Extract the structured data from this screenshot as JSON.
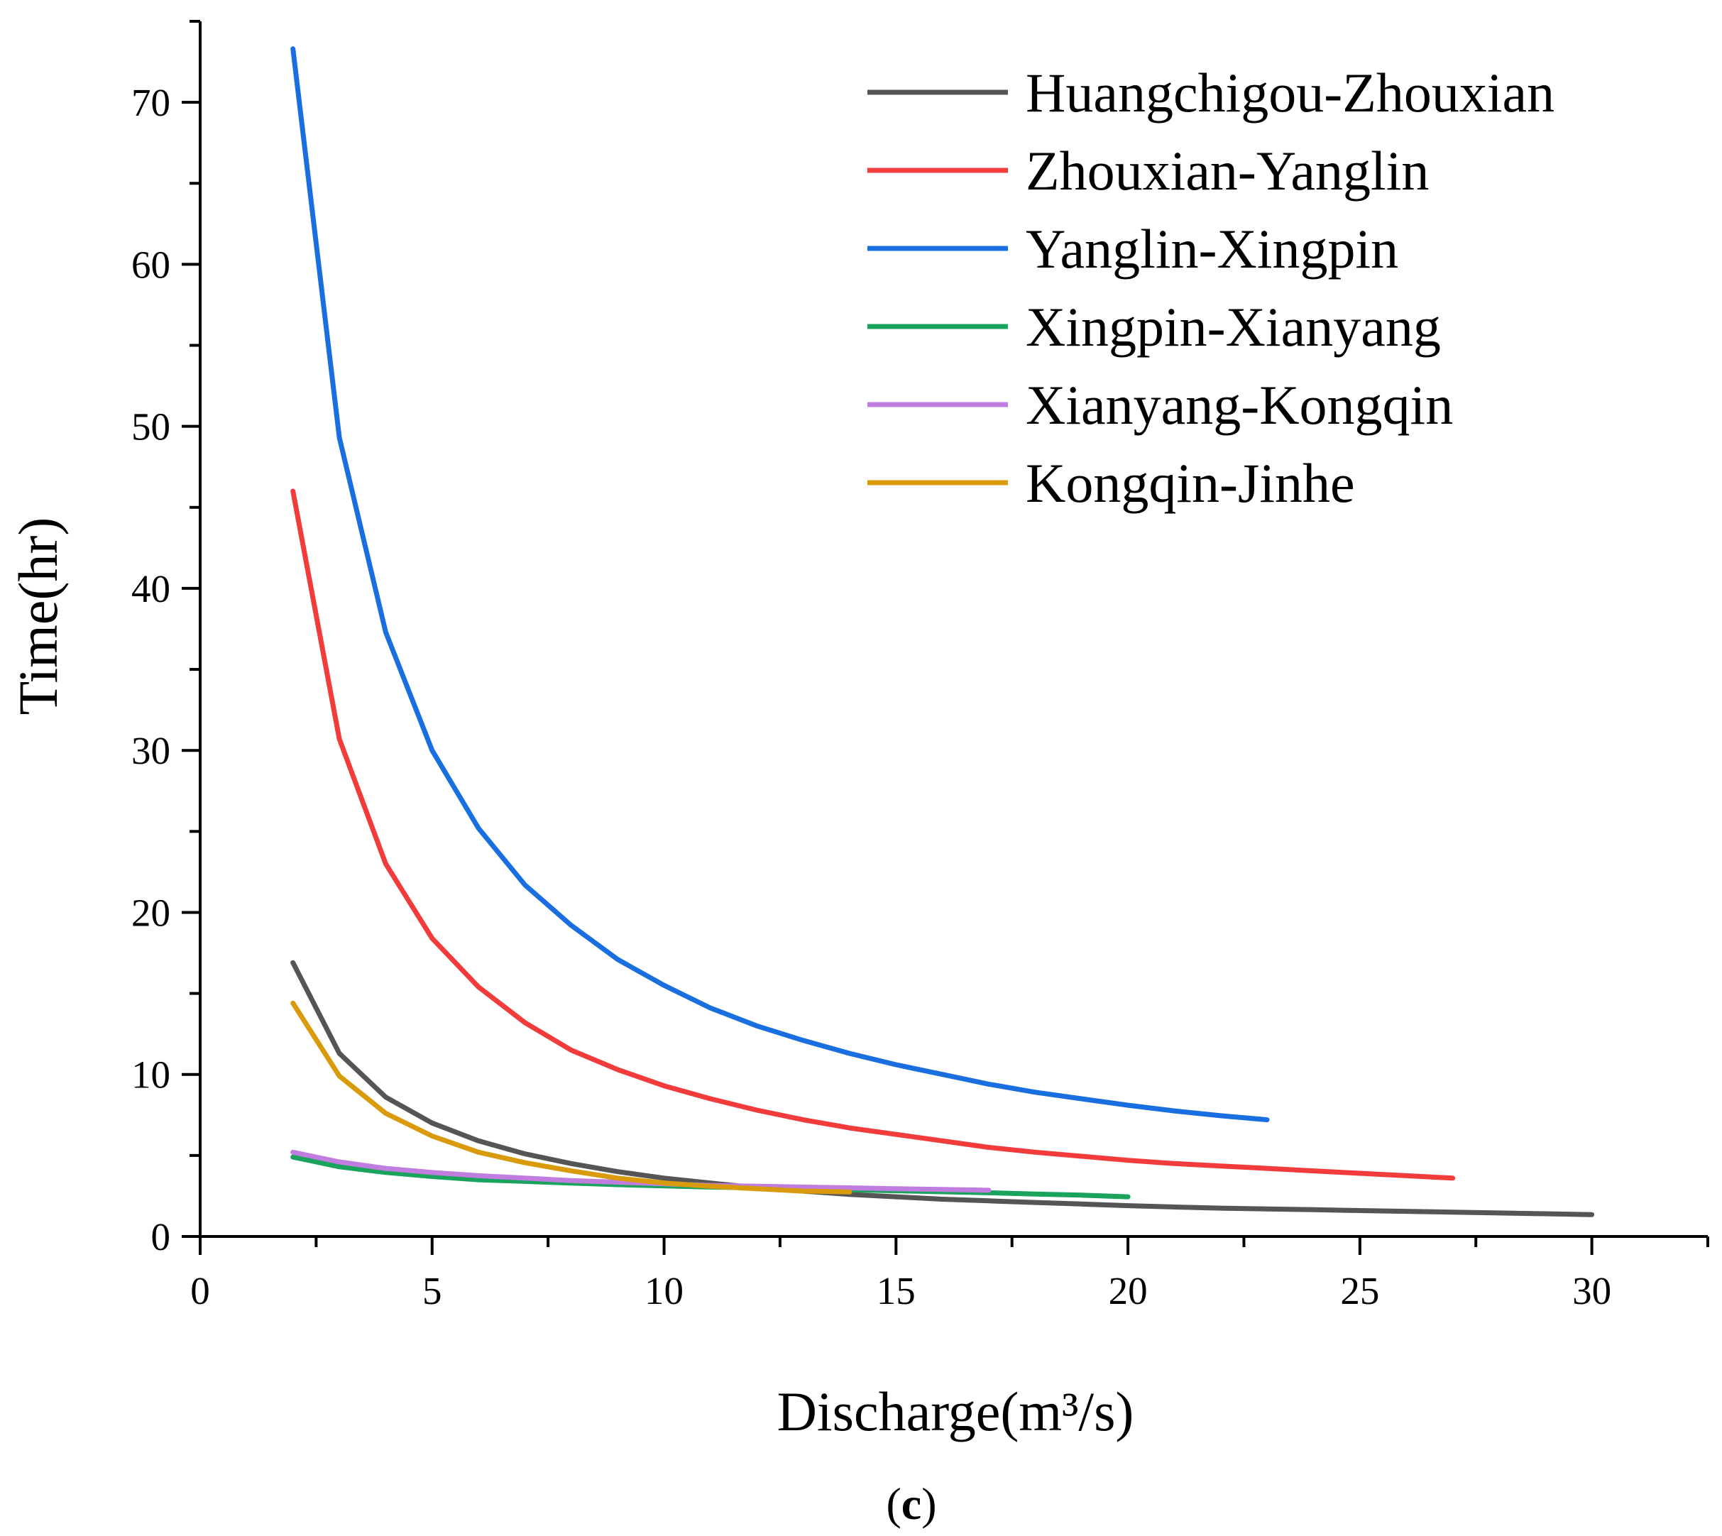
{
  "chart_data": {
    "type": "line",
    "xlabel": "Discharge(m³/s)",
    "ylabel": "Time(hr)",
    "xlim": [
      0,
      32.5
    ],
    "ylim": [
      0,
      75
    ],
    "xticks": [
      0,
      5,
      10,
      15,
      20,
      25,
      30
    ],
    "yticks": [
      0,
      10,
      20,
      30,
      40,
      50,
      60,
      70
    ],
    "grid": false,
    "legend_position": "top-right",
    "caption": {
      "open": "(",
      "letter": "c",
      "close": ")"
    },
    "series": [
      {
        "name": "Huangchigou-Zhouxian",
        "color": "#555555",
        "x": [
          2,
          3,
          4,
          5,
          6,
          7,
          8,
          9,
          10,
          11,
          12,
          13,
          14,
          15,
          16,
          17,
          18,
          19,
          20,
          21,
          22,
          23,
          24,
          25,
          26,
          27,
          28,
          29,
          30
        ],
        "y": [
          16.9,
          11.3,
          8.6,
          7.0,
          5.9,
          5.1,
          4.5,
          4.0,
          3.6,
          3.3,
          3.0,
          2.8,
          2.6,
          2.45,
          2.3,
          2.2,
          2.1,
          2.0,
          1.9,
          1.82,
          1.75,
          1.7,
          1.65,
          1.6,
          1.55,
          1.5,
          1.45,
          1.4,
          1.35
        ]
      },
      {
        "name": "Zhouxian-Yanglin",
        "color": "#f23b3b",
        "x": [
          2,
          3,
          4,
          5,
          6,
          7,
          8,
          9,
          10,
          11,
          12,
          13,
          14,
          15,
          16,
          17,
          18,
          19,
          20,
          21,
          22,
          23,
          24,
          25,
          26,
          27
        ],
        "y": [
          46.0,
          30.7,
          23.0,
          18.4,
          15.4,
          13.2,
          11.5,
          10.3,
          9.3,
          8.5,
          7.8,
          7.2,
          6.7,
          6.3,
          5.9,
          5.5,
          5.2,
          4.95,
          4.7,
          4.5,
          4.35,
          4.2,
          4.05,
          3.9,
          3.75,
          3.6
        ]
      },
      {
        "name": "Yanglin-Xingpin",
        "color": "#1a6fe0",
        "x": [
          2,
          3,
          4,
          5,
          6,
          7,
          8,
          9,
          10,
          11,
          12,
          13,
          14,
          15,
          16,
          17,
          18,
          19,
          20,
          21,
          22,
          23
        ],
        "y": [
          73.3,
          49.3,
          37.3,
          30.0,
          25.2,
          21.7,
          19.2,
          17.1,
          15.5,
          14.1,
          13.0,
          12.1,
          11.3,
          10.6,
          10.0,
          9.4,
          8.9,
          8.5,
          8.1,
          7.75,
          7.45,
          7.2
        ]
      },
      {
        "name": "Xingpin-Xianyang",
        "color": "#1aa35c",
        "x": [
          2,
          3,
          4,
          5,
          6,
          7,
          8,
          9,
          10,
          11,
          12,
          13,
          14,
          15,
          16,
          17,
          18,
          19,
          20
        ],
        "y": [
          4.9,
          4.3,
          3.95,
          3.7,
          3.5,
          3.4,
          3.3,
          3.2,
          3.12,
          3.05,
          3.0,
          2.95,
          2.88,
          2.82,
          2.76,
          2.7,
          2.62,
          2.55,
          2.45
        ]
      },
      {
        "name": "Xianyang-Kongqin",
        "color": "#c07ddf",
        "x": [
          2,
          3,
          4,
          5,
          6,
          7,
          8,
          9,
          10,
          11,
          12,
          13,
          14,
          15,
          16,
          17
        ],
        "y": [
          5.2,
          4.6,
          4.2,
          3.95,
          3.75,
          3.6,
          3.45,
          3.35,
          3.25,
          3.15,
          3.1,
          3.05,
          3.0,
          2.95,
          2.9,
          2.85
        ]
      },
      {
        "name": "Kongqin-Jinhe",
        "color": "#d99a0b",
        "x": [
          2,
          3,
          4,
          5,
          6,
          7,
          8,
          9,
          10,
          11,
          12,
          13,
          14
        ],
        "y": [
          14.4,
          9.9,
          7.6,
          6.2,
          5.2,
          4.55,
          4.05,
          3.6,
          3.3,
          3.1,
          2.95,
          2.8,
          2.75
        ]
      }
    ]
  }
}
